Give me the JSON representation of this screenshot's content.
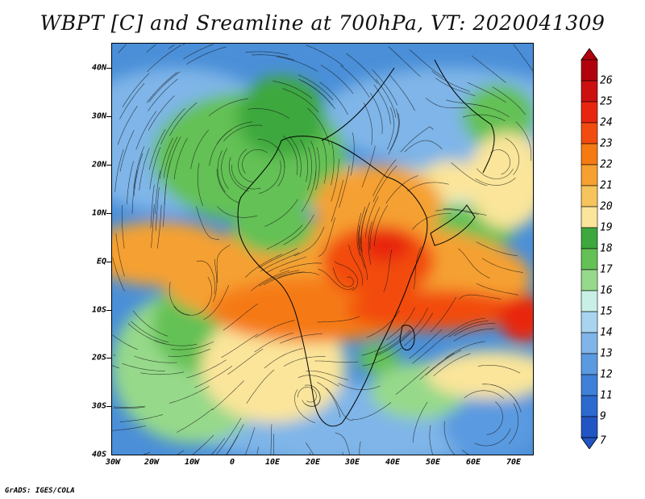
{
  "title": "WBPT [C] and Sreamline at 700hPa, VT: 2020041309",
  "credit": "GrADS: IGES/COLA",
  "axes": {
    "lat_labels": [
      "40N",
      "30N",
      "20N",
      "10N",
      "EQ",
      "10S",
      "20S",
      "30S",
      "40S"
    ],
    "lon_labels": [
      "30W",
      "20W",
      "10W",
      "0",
      "10E",
      "20E",
      "30E",
      "40E",
      "50E",
      "60E",
      "70E"
    ]
  },
  "colorbar": {
    "labels": [
      "26",
      "25",
      "24",
      "23",
      "22",
      "21",
      "20",
      "19",
      "18",
      "17",
      "16",
      "15",
      "14",
      "13",
      "12",
      "11",
      "9",
      "7"
    ],
    "colors": [
      "#b3000d",
      "#cc1010",
      "#e8260f",
      "#f24b0f",
      "#f57a12",
      "#f5a030",
      "#f6c45c",
      "#fae59a",
      "#3da83d",
      "#64c155",
      "#96d98a",
      "#c8f0e6",
      "#a8d4f0",
      "#7fb5e8",
      "#5a9ae0",
      "#3f80d8",
      "#2c6ad0",
      "#2255c4"
    ]
  }
}
